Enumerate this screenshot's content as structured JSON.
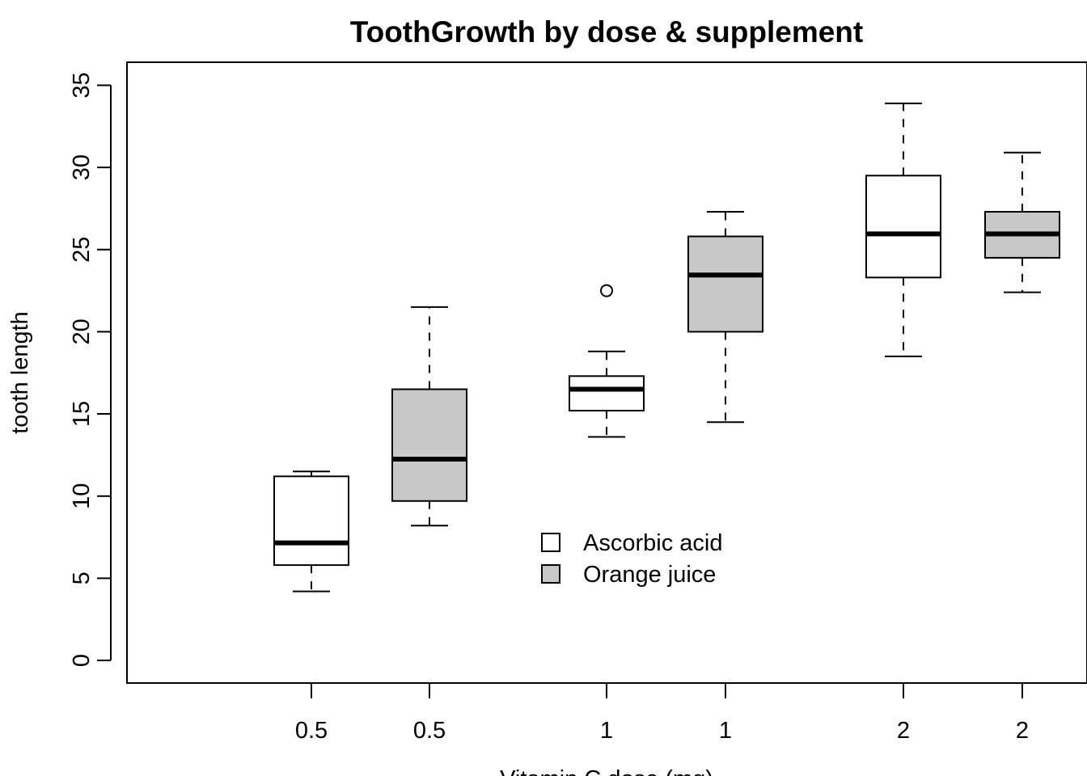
{
  "chart_data": {
    "type": "boxplot",
    "title": "ToothGrowth by dose & supplement",
    "xlabel": "Vitamin C dose (mg)",
    "ylabel": "tooth length",
    "ylim": [
      0,
      35
    ],
    "y_ticks": [
      0,
      5,
      10,
      15,
      20,
      25,
      30,
      35
    ],
    "grid": false,
    "legend_position": "center",
    "colors": {
      "ascorbic": "#ffffff",
      "orange": "#c8c8c8",
      "stroke": "#000000"
    },
    "legend": [
      {
        "name": "Ascorbic acid",
        "color": "#ffffff"
      },
      {
        "name": "Orange juice",
        "color": "#c8c8c8"
      }
    ],
    "boxes": [
      {
        "label": "0.5",
        "x": 0.5,
        "series": "Ascorbic acid",
        "min": 4.2,
        "q1": 5.8,
        "median": 7.15,
        "q3": 11.2,
        "max": 11.5,
        "outliers": []
      },
      {
        "label": "0.5",
        "x": 0.5,
        "series": "Orange juice",
        "min": 8.2,
        "q1": 9.7,
        "median": 12.25,
        "q3": 16.5,
        "max": 21.5,
        "outliers": []
      },
      {
        "label": "1",
        "x": 1,
        "series": "Ascorbic acid",
        "min": 13.6,
        "q1": 15.2,
        "median": 16.5,
        "q3": 17.3,
        "max": 18.8,
        "outliers": [
          22.5
        ]
      },
      {
        "label": "1",
        "x": 1,
        "series": "Orange juice",
        "min": 14.5,
        "q1": 20.0,
        "median": 23.45,
        "q3": 25.8,
        "max": 27.3,
        "outliers": []
      },
      {
        "label": "2",
        "x": 2,
        "series": "Ascorbic acid",
        "min": 18.5,
        "q1": 23.3,
        "median": 25.95,
        "q3": 29.5,
        "max": 33.9,
        "outliers": []
      },
      {
        "label": "2",
        "x": 2,
        "series": "Orange juice",
        "min": 22.4,
        "q1": 24.5,
        "median": 25.95,
        "q3": 27.3,
        "max": 30.9,
        "outliers": []
      }
    ]
  }
}
